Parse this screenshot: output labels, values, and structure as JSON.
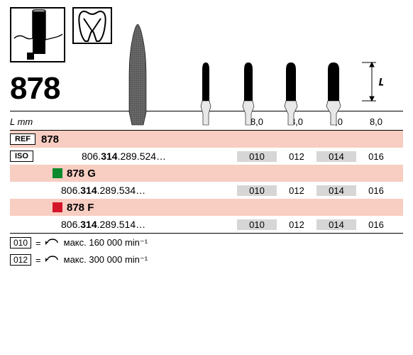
{
  "product_number": "878",
  "length_label": "L mm",
  "length_marker": "L",
  "lengths": [
    "8,0",
    "8,0",
    "8,0",
    "8,0"
  ],
  "ref_label": "REF",
  "iso_label": "ISO",
  "ref_value": "878",
  "variants": [
    {
      "name": "878",
      "color_sq": null,
      "iso_prefix": "806.",
      "iso_mid": "314",
      "iso_suffix": ".289.524…",
      "sizes": [
        "010",
        "012",
        "014",
        "016"
      ]
    },
    {
      "name": "878 G",
      "color_sq": "#0b8a2e",
      "iso_prefix": "806.",
      "iso_mid": "314",
      "iso_suffix": ".289.534…",
      "sizes": [
        "010",
        "012",
        "014",
        "016"
      ]
    },
    {
      "name": "878 F",
      "color_sq": "#d4162a",
      "iso_prefix": "806.",
      "iso_mid": "314",
      "iso_suffix": ".289.514…",
      "sizes": [
        "010",
        "012",
        "014",
        "016"
      ]
    }
  ],
  "speed_notes": [
    {
      "size": "010",
      "text": "макс. 160 000 min⁻¹"
    },
    {
      "size": "012",
      "text": "макс. 300 000 min⁻¹"
    }
  ],
  "burs": [
    {
      "tip_w": 24,
      "tip_h": 110,
      "scale": 1.0,
      "fill": "url(#tex)"
    },
    {
      "tip_w": 10,
      "tip_h": 54,
      "scale": 1.0,
      "fill": "#000"
    },
    {
      "tip_w": 12,
      "tip_h": 54,
      "scale": 1.0,
      "fill": "#000"
    },
    {
      "tip_w": 14,
      "tip_h": 54,
      "scale": 1.0,
      "fill": "#000"
    },
    {
      "tip_w": 16,
      "tip_h": 54,
      "scale": 1.0,
      "fill": "#000"
    }
  ],
  "colors": {
    "pink": "#f8cdc2",
    "grey": "#d6d6d6"
  }
}
